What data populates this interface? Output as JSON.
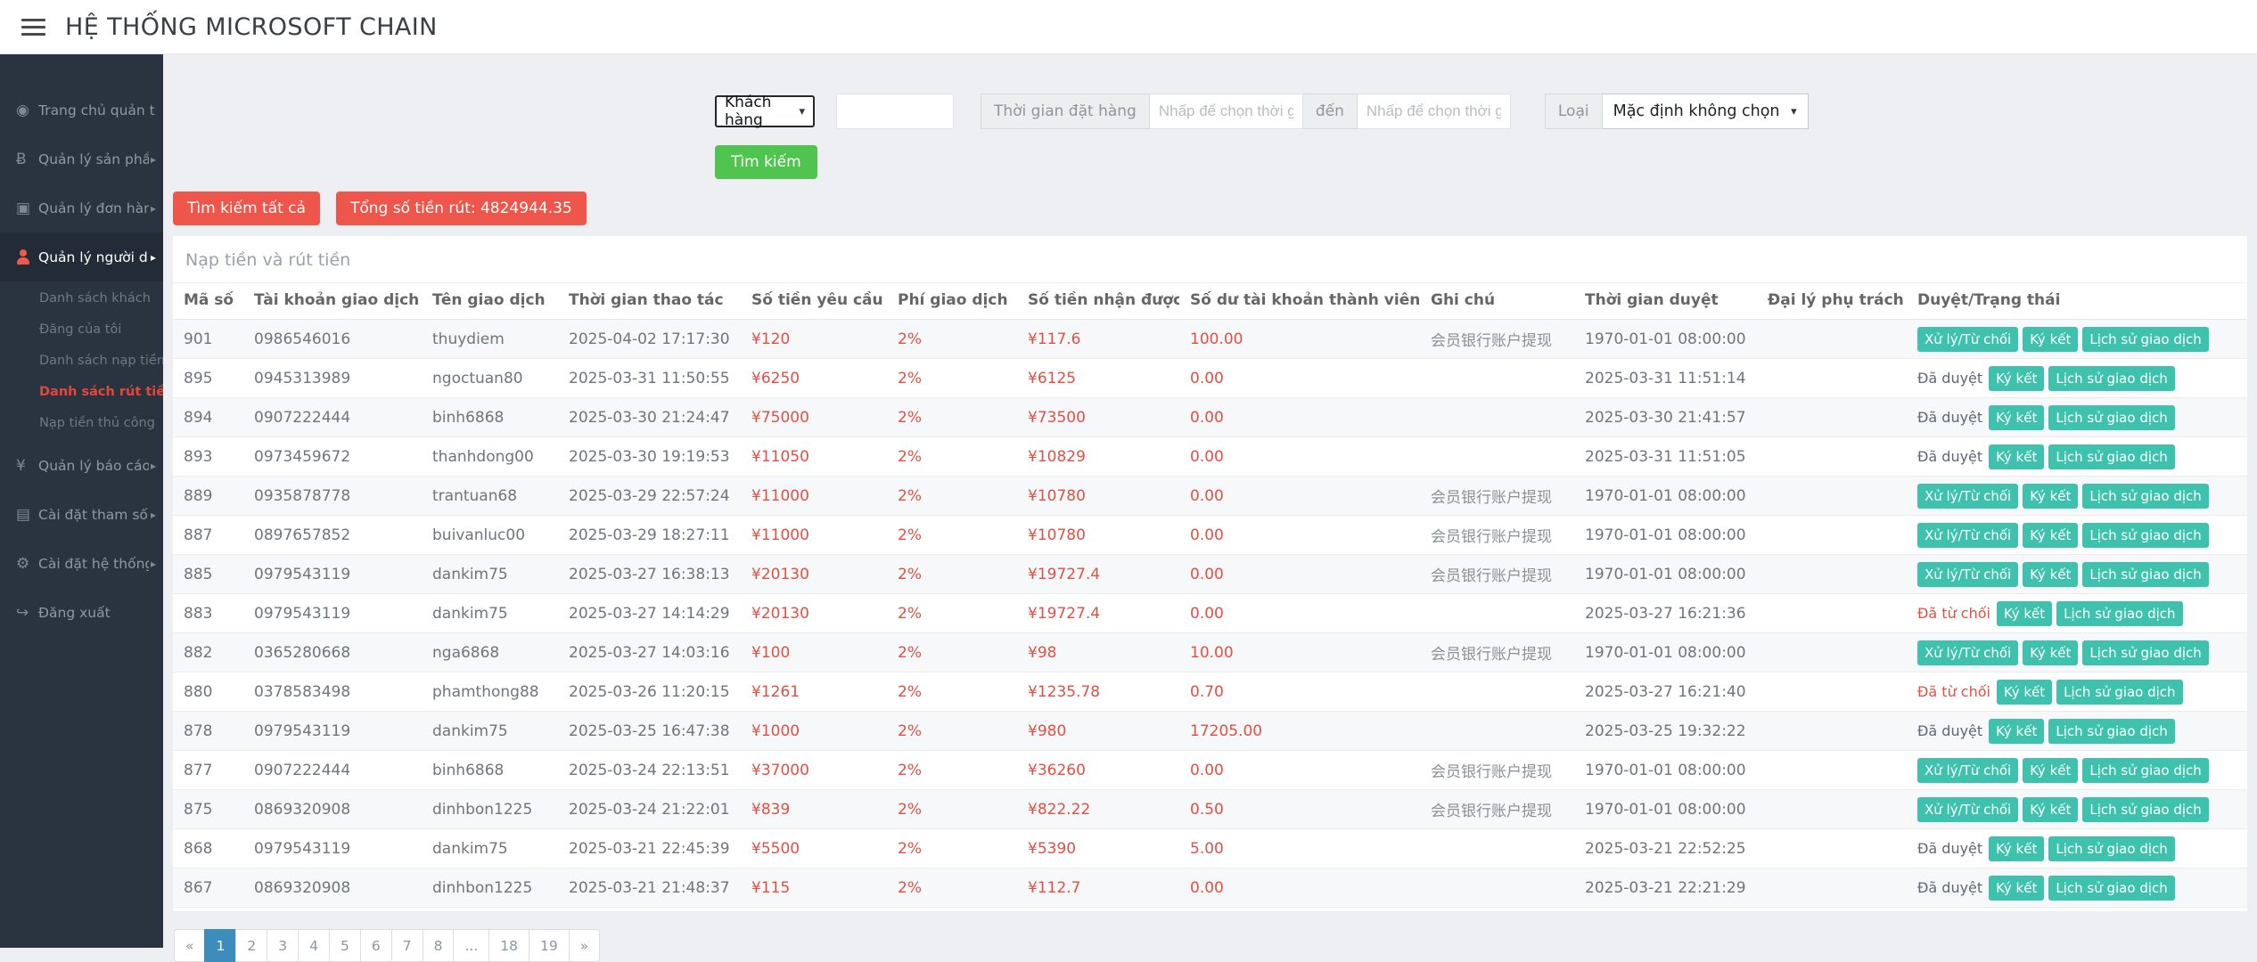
{
  "header": {
    "title": "HỆ THỐNG MICROSOFT CHAIN"
  },
  "colors": {
    "sidebar_bg": "#2a3440",
    "accent_red": "#ee564b",
    "accent_green": "#4fc44f",
    "teal_button": "#3ec2ae",
    "money_red": "#e05045",
    "pagination_active_blue": "#3c8dbc"
  },
  "sidebar": {
    "items": [
      {
        "id": "dashboard",
        "icon": "dashboard-icon",
        "label": "Trang chủ quản trị"
      },
      {
        "id": "products",
        "icon": "bitcoin-icon",
        "label": "Quản lý sản phẩm",
        "caret": true
      },
      {
        "id": "orders",
        "icon": "orders-icon",
        "label": "Quản lý đơn hàng",
        "caret": true
      },
      {
        "id": "users",
        "icon": "user-icon",
        "label": "Quản lý người dùng",
        "caret": true,
        "active": true,
        "children": [
          {
            "id": "customer-list",
            "label": "Danh sách khách"
          },
          {
            "id": "my-page",
            "label": "Đăng của tôi"
          },
          {
            "id": "deposit-list",
            "label": "Danh sách nạp tiền"
          },
          {
            "id": "withdraw-list",
            "label": "Danh sách rút tiền",
            "active": true
          },
          {
            "id": "manual-deposit",
            "label": "Nạp tiền thủ công"
          }
        ]
      },
      {
        "id": "reports",
        "icon": "yen-icon",
        "label": "Quản lý báo cáo",
        "caret": true
      },
      {
        "id": "params",
        "icon": "file-icon",
        "label": "Cài đặt tham số",
        "caret": true
      },
      {
        "id": "system",
        "icon": "gear-icon",
        "label": "Cài đặt hệ thống",
        "caret": true
      },
      {
        "id": "logout",
        "icon": "logout-icon",
        "label": "Đăng xuất"
      }
    ]
  },
  "filters": {
    "customer_type": "Khách hàng",
    "keyword_value": "",
    "order_time_label": "Thời gian đặt hàng",
    "time_placeholder": "Nhấp để chọn thời gian",
    "to_label": "đến",
    "type_label": "Loại",
    "type_value": "Mặc định không chọn",
    "search_label": "Tìm kiếm"
  },
  "toolbar": {
    "search_all": "Tìm kiếm tất cả",
    "total_withdraw": "Tổng số tiền rút: 4824944.35"
  },
  "panel": {
    "title": "Nạp tiền và rút tiền"
  },
  "table": {
    "columns": [
      "Mã số",
      "Tài khoản giao dịch",
      "Tên giao dịch",
      "Thời gian thao tác",
      "Số tiền yêu cầu",
      "Phí giao dịch",
      "Số tiền nhận được",
      "Số dư tài khoản thành viên",
      "Ghi chú",
      "Thời gian duyệt",
      "Đại lý phụ trách",
      "Duyệt/Trạng thái"
    ],
    "actions": {
      "process": "Xử lý/Từ chối",
      "sign": "Ký kết",
      "history": "Lịch sử giao dịch",
      "approved": "Đã duyệt",
      "rejected": "Đã từ chối"
    },
    "rows": [
      {
        "id": "901",
        "account": "0986546016",
        "name": "thuydiem",
        "op_time": "2025-04-02 17:17:30",
        "amount": "¥120",
        "fee": "2%",
        "received": "¥117.6",
        "balance": "100.00",
        "note": "会员银行账户提现",
        "approve_time": "1970-01-01 08:00:00",
        "agent": "",
        "status": "pending"
      },
      {
        "id": "895",
        "account": "0945313989",
        "name": "ngoctuan80",
        "op_time": "2025-03-31 11:50:55",
        "amount": "¥6250",
        "fee": "2%",
        "received": "¥6125",
        "balance": "0.00",
        "note": "",
        "approve_time": "2025-03-31 11:51:14",
        "agent": "",
        "status": "approved"
      },
      {
        "id": "894",
        "account": "0907222444",
        "name": "binh6868",
        "op_time": "2025-03-30 21:24:47",
        "amount": "¥75000",
        "fee": "2%",
        "received": "¥73500",
        "balance": "0.00",
        "note": "",
        "approve_time": "2025-03-30 21:41:57",
        "agent": "",
        "status": "approved"
      },
      {
        "id": "893",
        "account": "0973459672",
        "name": "thanhdong00",
        "op_time": "2025-03-30 19:19:53",
        "amount": "¥11050",
        "fee": "2%",
        "received": "¥10829",
        "balance": "0.00",
        "note": "",
        "approve_time": "2025-03-31 11:51:05",
        "agent": "",
        "status": "approved"
      },
      {
        "id": "889",
        "account": "0935878778",
        "name": "trantuan68",
        "op_time": "2025-03-29 22:57:24",
        "amount": "¥11000",
        "fee": "2%",
        "received": "¥10780",
        "balance": "0.00",
        "note": "会员银行账户提现",
        "approve_time": "1970-01-01 08:00:00",
        "agent": "",
        "status": "pending"
      },
      {
        "id": "887",
        "account": "0897657852",
        "name": "buivanluc00",
        "op_time": "2025-03-29 18:27:11",
        "amount": "¥11000",
        "fee": "2%",
        "received": "¥10780",
        "balance": "0.00",
        "note": "会员银行账户提现",
        "approve_time": "1970-01-01 08:00:00",
        "agent": "",
        "status": "pending"
      },
      {
        "id": "885",
        "account": "0979543119",
        "name": "dankim75",
        "op_time": "2025-03-27 16:38:13",
        "amount": "¥20130",
        "fee": "2%",
        "received": "¥19727.4",
        "balance": "0.00",
        "note": "会员银行账户提现",
        "approve_time": "1970-01-01 08:00:00",
        "agent": "",
        "status": "pending"
      },
      {
        "id": "883",
        "account": "0979543119",
        "name": "dankim75",
        "op_time": "2025-03-27 14:14:29",
        "amount": "¥20130",
        "fee": "2%",
        "received": "¥19727.4",
        "balance": "0.00",
        "note": "",
        "approve_time": "2025-03-27 16:21:36",
        "agent": "",
        "status": "rejected"
      },
      {
        "id": "882",
        "account": "0365280668",
        "name": "nga6868",
        "op_time": "2025-03-27 14:03:16",
        "amount": "¥100",
        "fee": "2%",
        "received": "¥98",
        "balance": "10.00",
        "note": "会员银行账户提现",
        "approve_time": "1970-01-01 08:00:00",
        "agent": "",
        "status": "pending"
      },
      {
        "id": "880",
        "account": "0378583498",
        "name": "phamthong88",
        "op_time": "2025-03-26 11:20:15",
        "amount": "¥1261",
        "fee": "2%",
        "received": "¥1235.78",
        "balance": "0.70",
        "note": "",
        "approve_time": "2025-03-27 16:21:40",
        "agent": "",
        "status": "rejected"
      },
      {
        "id": "878",
        "account": "0979543119",
        "name": "dankim75",
        "op_time": "2025-03-25 16:47:38",
        "amount": "¥1000",
        "fee": "2%",
        "received": "¥980",
        "balance": "17205.00",
        "note": "",
        "approve_time": "2025-03-25 19:32:22",
        "agent": "",
        "status": "approved"
      },
      {
        "id": "877",
        "account": "0907222444",
        "name": "binh6868",
        "op_time": "2025-03-24 22:13:51",
        "amount": "¥37000",
        "fee": "2%",
        "received": "¥36260",
        "balance": "0.00",
        "note": "会员银行账户提现",
        "approve_time": "1970-01-01 08:00:00",
        "agent": "",
        "status": "pending"
      },
      {
        "id": "875",
        "account": "0869320908",
        "name": "dinhbon1225",
        "op_time": "2025-03-24 21:22:01",
        "amount": "¥839",
        "fee": "2%",
        "received": "¥822.22",
        "balance": "0.50",
        "note": "会员银行账户提现",
        "approve_time": "1970-01-01 08:00:00",
        "agent": "",
        "status": "pending"
      },
      {
        "id": "868",
        "account": "0979543119",
        "name": "dankim75",
        "op_time": "2025-03-21 22:45:39",
        "amount": "¥5500",
        "fee": "2%",
        "received": "¥5390",
        "balance": "5.00",
        "note": "",
        "approve_time": "2025-03-21 22:52:25",
        "agent": "",
        "status": "approved"
      },
      {
        "id": "867",
        "account": "0869320908",
        "name": "dinhbon1225",
        "op_time": "2025-03-21 21:48:37",
        "amount": "¥115",
        "fee": "2%",
        "received": "¥112.7",
        "balance": "0.00",
        "note": "",
        "approve_time": "2025-03-21 22:21:29",
        "agent": "",
        "status": "approved"
      }
    ]
  },
  "pagination": {
    "prev": "«",
    "next": "»",
    "pages": [
      "1",
      "2",
      "3",
      "4",
      "5",
      "6",
      "7",
      "8",
      "...",
      "18",
      "19"
    ],
    "active": "1"
  }
}
